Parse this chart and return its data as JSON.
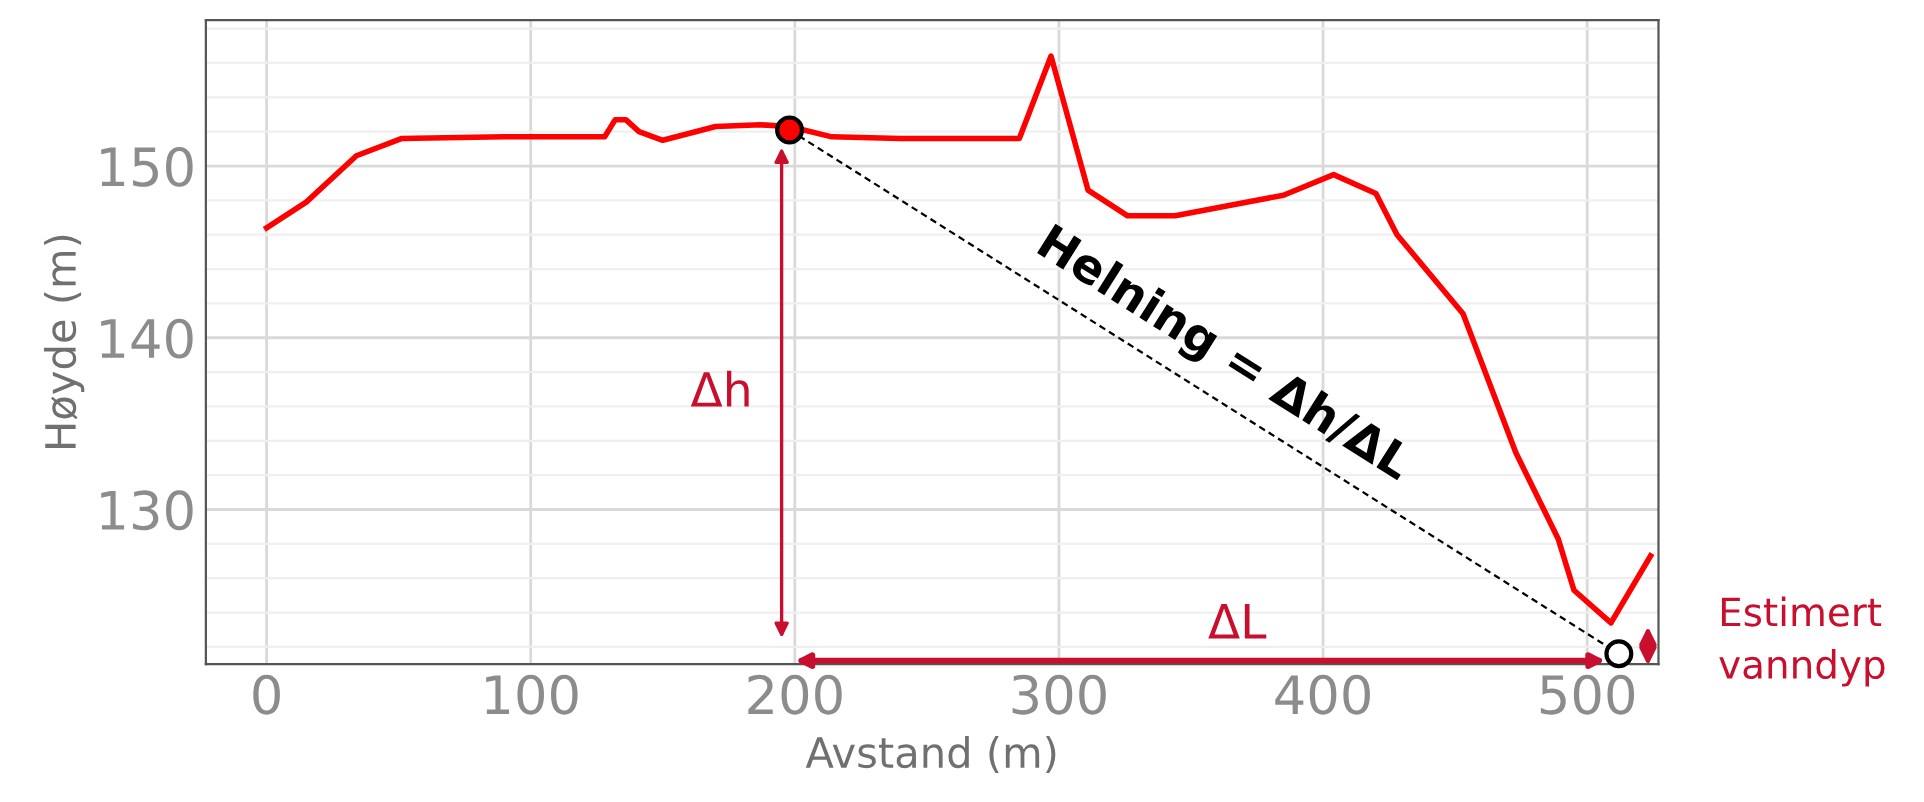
{
  "chart_data": {
    "type": "line",
    "xlabel": "Avstand (m)",
    "ylabel": "Høyde (m)",
    "series": [
      {
        "color": "#ff0000",
        "x": [
          0,
          15,
          34,
          51,
          90,
          128,
          132,
          136,
          141,
          150,
          170,
          187,
          198,
          214,
          240,
          268,
          285,
          297,
          311,
          326,
          344,
          385,
          404,
          420,
          428,
          453,
          473,
          489,
          495,
          509,
          524
        ],
        "values": [
          146.4,
          147.9,
          150.6,
          151.6,
          151.7,
          151.7,
          152.7,
          152.7,
          152.0,
          151.5,
          152.3,
          152.4,
          152.3,
          151.7,
          151.6,
          151.6,
          151.6,
          156.4,
          148.6,
          147.1,
          147.1,
          148.3,
          149.5,
          148.4,
          146.0,
          141.4,
          133.3,
          128.3,
          125.3,
          123.4,
          127.3
        ]
      },
      {
        "type": "line",
        "color": "#000000",
        "line_style": "dashed",
        "x": [
          198,
          512
        ],
        "values": [
          152.1,
          121.6
        ]
      },
      {
        "type": "scatter",
        "marker": "circle",
        "color": "#ff0000",
        "x": [
          198
        ],
        "values": [
          152.1
        ]
      },
      {
        "type": "scatter",
        "marker": "circle",
        "color": "#ffffff",
        "x": [
          512
        ],
        "values": [
          121.6
        ]
      }
    ],
    "xlim": [
      -23,
      527
    ],
    "ylim": [
      121,
      158.5
    ],
    "xticks": [
      0,
      100,
      200,
      300,
      400,
      500
    ],
    "yticks": [
      130,
      140,
      150
    ],
    "grid": true,
    "annotations": [
      "Δh",
      "ΔL",
      "Helning = Δh/ΔL",
      "Estimert\nvanndyp"
    ]
  }
}
